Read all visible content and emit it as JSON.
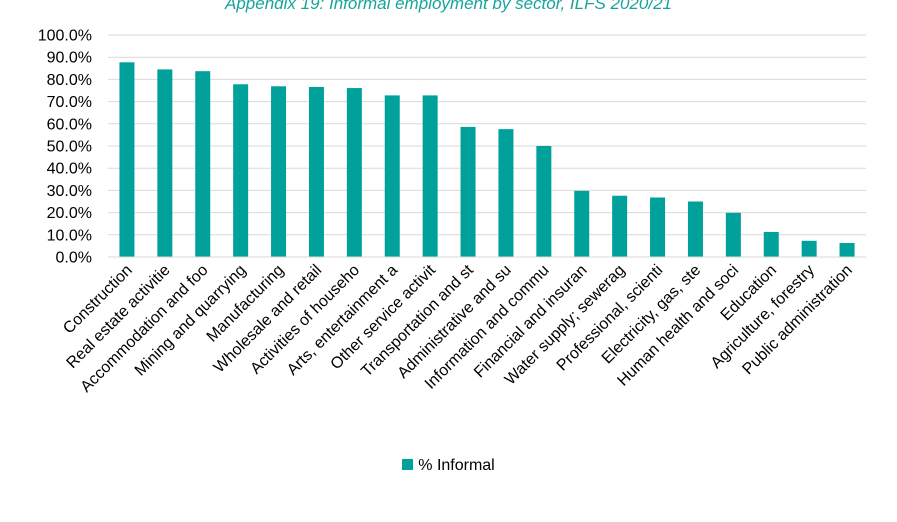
{
  "chart_data": {
    "type": "bar",
    "title": "Appendix 19: Informal employment by sector, ILFS 2020/21",
    "xlabel": "",
    "ylabel": "",
    "ylim": [
      0,
      100
    ],
    "yticks": [
      "0.0%",
      "10.0%",
      "20.0%",
      "30.0%",
      "40.0%",
      "50.0%",
      "60.0%",
      "70.0%",
      "80.0%",
      "90.0%",
      "100.0%"
    ],
    "grid": true,
    "legend_position": "bottom",
    "categories": [
      "Construction",
      "Real estate activitie",
      "Accommodation and foo",
      "Mining and quarrying",
      "Manufacturing",
      "Wholesale and retail",
      "Activities of househo",
      "Arts, entertainment a",
      "Other service activit",
      "Transportation and st",
      "Administrative and su",
      "Information and commu",
      "Financial and insuran",
      "Water supply; sewerag",
      "Professional, scienti",
      "Electricity, gas, ste",
      "Human health and soci",
      "Education",
      "Agriculture, forestry",
      "Public administration"
    ],
    "series": [
      {
        "name": "% Informal",
        "color": "#00a19a",
        "values": [
          87.7,
          84.5,
          83.7,
          77.8,
          76.9,
          76.6,
          76.1,
          72.8,
          72.8,
          58.6,
          57.6,
          50.0,
          29.8,
          27.6,
          26.8,
          25.0,
          19.9,
          11.3,
          7.3,
          6.3
        ]
      }
    ]
  }
}
